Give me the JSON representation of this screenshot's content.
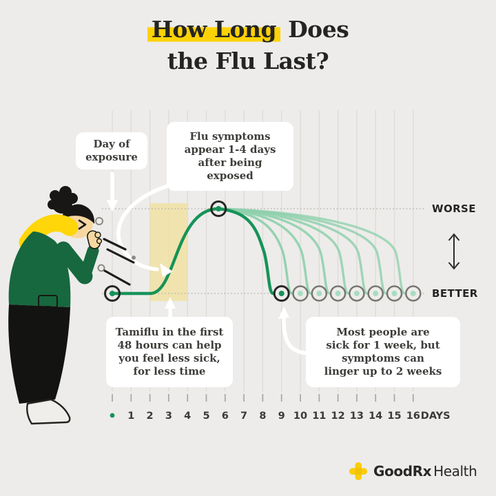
{
  "title": {
    "highlight": "How Long",
    "line1_rest": " Does",
    "line2": "the Flu Last?",
    "highlight_color": "#FDD205"
  },
  "callouts": {
    "exposure": "Day of\nexposure",
    "symptoms": "Flu symptoms\nappear 1-4 days\nafter being\nexposed",
    "tamiflu": "Tamiflu in the first\n48 hours can help\nyou feel less sick,\nfor less time",
    "duration": "Most people are\nsick for 1 week, but\nsymptoms can\nlinger up to 2 weeks"
  },
  "footer": {
    "brand_bold": "GoodRx",
    "brand_light": "Health"
  },
  "chart_data": {
    "type": "line",
    "title": "Flu symptom severity by day after exposure",
    "x_label_unit": "DAYS",
    "x_range": [
      0,
      16
    ],
    "x_tick_labels": [
      "1",
      "2",
      "3",
      "4",
      "5",
      "6",
      "7",
      "8",
      "9",
      "10",
      "11",
      "12",
      "13",
      "14",
      "15",
      "16"
    ],
    "y_axis": {
      "top_label": "WORSE",
      "bottom_label": "BETTER"
    },
    "exposure_day": 0,
    "symptom_onset_window_days": [
      1,
      4
    ],
    "treatment_band_days": [
      2,
      4
    ],
    "peak_severity_day": 5.65,
    "rise_start_day": 2.05,
    "typical_recovery_day": 9,
    "lingering_recovery_days": [
      10,
      11,
      12,
      13,
      14,
      15,
      16
    ],
    "series": [
      {
        "name": "typical-course",
        "points": [
          {
            "day": 0,
            "severity": 0
          },
          {
            "day": 2,
            "severity": 0
          },
          {
            "day": 5.65,
            "severity": 1
          },
          {
            "day": 9,
            "severity": 0
          }
        ]
      },
      {
        "name": "lingering-courses",
        "description": "same rise and peak, recovery spread between day 10 and day 16",
        "recovery_days": [
          10,
          11,
          12,
          13,
          14,
          15,
          16
        ]
      }
    ],
    "colors": {
      "main_curve": "#169359",
      "light_curve": "#8FD0AC",
      "band": "#F0E2A3",
      "grid": "#DEDDD9",
      "dotted": "#B7B5B0",
      "ring_dark": "#262624",
      "ring_light": "#77766F",
      "dot_light": "#A9DCC2",
      "tick": "#ABA9A4",
      "axis_text": "#3B3A37",
      "arrow_white": "#FFFFFF",
      "scale_arrow": "#2B2B29",
      "background": "#EDECEA"
    }
  }
}
